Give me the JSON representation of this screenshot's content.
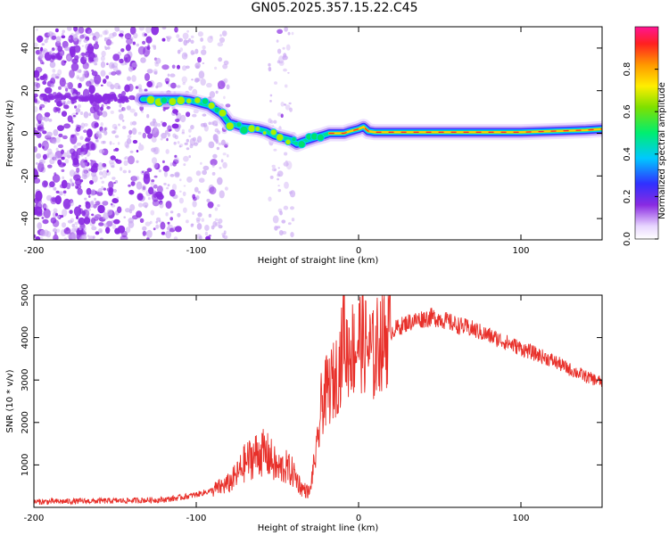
{
  "figure_title": "GN05.2025.357.15.22.C45",
  "colors": {
    "trace": "#e8302a",
    "scatter": "#8a2be2",
    "scatter_light": "#c9a6f2",
    "axis": "#000000"
  },
  "chart_data": [
    {
      "type": "heatmap",
      "name": "spectrogram",
      "xlabel": "Height of straight line (km)",
      "ylabel": "Frequency (Hz)",
      "xlim": [
        -200,
        150
      ],
      "ylim": [
        -50,
        50
      ],
      "xticks": [
        -200,
        -100,
        0,
        100
      ],
      "yticks": [
        -40,
        -20,
        0,
        20,
        40
      ],
      "xtick_labels": [
        "-200",
        "-100",
        "0",
        "100"
      ],
      "ytick_labels": [
        "-40",
        "-20",
        "0",
        "20",
        "40"
      ],
      "colorbar": {
        "label": "Normalized spectral amplitude",
        "range": [
          0,
          1
        ],
        "ticks": [
          0,
          0.2,
          0.4,
          0.6,
          0.8
        ],
        "tick_labels": [
          "0.0",
          "0.2",
          "0.4",
          "0.6",
          "0.8"
        ]
      },
      "ridge_x": [
        -133,
        -125,
        -118,
        -110,
        -104,
        -97,
        -92,
        -88,
        -84,
        -80,
        -76,
        -72,
        -67,
        -62,
        -57,
        -52,
        -47,
        -42,
        -38,
        -35,
        -31,
        -27,
        -22,
        -18,
        -13,
        -9,
        -5,
        0,
        3,
        6,
        10,
        20,
        40,
        60,
        80,
        100,
        120,
        140,
        150
      ],
      "ridge_y": [
        16,
        16,
        16,
        16,
        15.5,
        14,
        13,
        11,
        9,
        5,
        4,
        3,
        2.5,
        2,
        1,
        -1,
        -2,
        -3,
        -5,
        -4,
        -3,
        -2,
        -1,
        0,
        0,
        0,
        1,
        2,
        3,
        1,
        0.5,
        0.5,
        0.5,
        0.5,
        0.5,
        0.5,
        1,
        1.5,
        2
      ]
    },
    {
      "type": "line",
      "name": "snr",
      "xlabel": "Height of straight line (km)",
      "ylabel": "SNR (10 * v/v)",
      "xlim": [
        -200,
        150
      ],
      "ylim": [
        0,
        5000
      ],
      "xticks": [
        -200,
        -100,
        0,
        100
      ],
      "yticks": [
        1000,
        2000,
        3000,
        4000,
        5000
      ],
      "xtick_labels": [
        "-200",
        "-100",
        "0",
        "100"
      ],
      "ytick_labels": [
        "1000",
        "2000",
        "3000",
        "4000",
        "5000"
      ],
      "series": [
        {
          "name": "SNR",
          "x": [
            -200,
            -180,
            -160,
            -140,
            -120,
            -110,
            -100,
            -90,
            -85,
            -80,
            -75,
            -70,
            -65,
            -60,
            -55,
            -50,
            -45,
            -40,
            -35,
            -30,
            -28,
            -25,
            -23,
            -20,
            -15,
            -12,
            -10,
            -9,
            -8,
            -5,
            -2,
            0,
            5,
            10,
            12,
            15,
            20,
            25,
            30,
            35,
            40,
            45,
            50,
            60,
            70,
            80,
            90,
            100,
            110,
            120,
            130,
            140,
            150
          ],
          "y": [
            130,
            140,
            150,
            160,
            180,
            230,
            300,
            400,
            480,
            560,
            750,
            1050,
            1200,
            1300,
            1200,
            900,
            950,
            800,
            450,
            350,
            900,
            1500,
            2400,
            2700,
            3000,
            3300,
            3700,
            4800,
            3600,
            3800,
            3700,
            4000,
            3800,
            3500,
            3900,
            4000,
            4150,
            4250,
            4350,
            4400,
            4450,
            4480,
            4450,
            4300,
            4200,
            4050,
            3900,
            3750,
            3600,
            3450,
            3250,
            3080,
            2950
          ],
          "color": "#e8302a"
        }
      ]
    }
  ]
}
